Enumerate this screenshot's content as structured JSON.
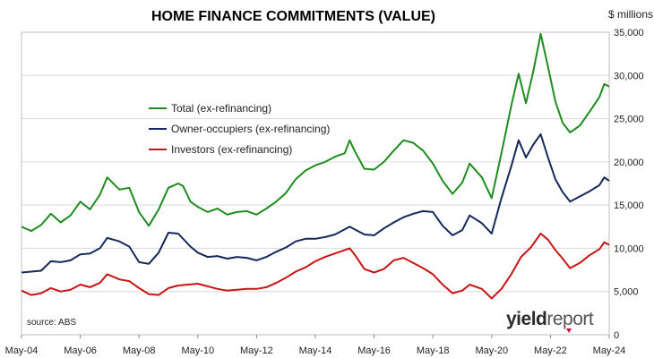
{
  "chart_data": {
    "type": "line",
    "title": "HOME FINANCE COMMITMENTS (VALUE)",
    "unit_label": "$ millions",
    "source": "source: ABS",
    "logo": {
      "part1": "yield",
      "part2": "report"
    },
    "xlabel": "",
    "ylabel": "",
    "x_ticks": [
      "May-04",
      "May-06",
      "May-08",
      "May-10",
      "May-12",
      "May-14",
      "May-16",
      "May-18",
      "May-20",
      "May-22",
      "May-24"
    ],
    "y_ticks": [
      "0",
      "5,000",
      "10,000",
      "15,000",
      "20,000",
      "25,000",
      "30,000",
      "35,000"
    ],
    "ylim": [
      0,
      35000
    ],
    "xlim": [
      "May-04",
      "May-24"
    ],
    "grid": "horizontal",
    "legend_position": "upper-left inside plot",
    "series": [
      {
        "name": "Total (ex-refinancing)",
        "color": "#1e8c1e",
        "points": [
          [
            "May-04",
            12500
          ],
          [
            "Sep-04",
            12000
          ],
          [
            "Jan-05",
            12700
          ],
          [
            "May-05",
            14000
          ],
          [
            "Sep-05",
            13000
          ],
          [
            "Jan-06",
            13800
          ],
          [
            "May-06",
            15400
          ],
          [
            "Sep-06",
            14500
          ],
          [
            "Jan-07",
            16200
          ],
          [
            "Apr-07",
            18200
          ],
          [
            "Sep-07",
            16800
          ],
          [
            "Jan-08",
            17000
          ],
          [
            "May-08",
            14200
          ],
          [
            "Sep-08",
            12600
          ],
          [
            "Jan-09",
            14500
          ],
          [
            "May-09",
            17000
          ],
          [
            "Sep-09",
            17500
          ],
          [
            "Nov-09",
            17200
          ],
          [
            "Feb-10",
            15400
          ],
          [
            "May-10",
            14800
          ],
          [
            "Sep-10",
            14200
          ],
          [
            "Jan-11",
            14600
          ],
          [
            "May-11",
            13900
          ],
          [
            "Sep-11",
            14200
          ],
          [
            "Jan-12",
            14300
          ],
          [
            "May-12",
            13900
          ],
          [
            "Sep-12",
            14600
          ],
          [
            "Jan-13",
            15400
          ],
          [
            "May-13",
            16400
          ],
          [
            "Sep-13",
            18000
          ],
          [
            "Jan-14",
            19000
          ],
          [
            "May-14",
            19600
          ],
          [
            "Sep-14",
            20000
          ],
          [
            "Jan-15",
            20600
          ],
          [
            "May-15",
            21000
          ],
          [
            "Jul-15",
            22500
          ],
          [
            "Sep-15",
            21300
          ],
          [
            "Jan-16",
            19200
          ],
          [
            "May-16",
            19100
          ],
          [
            "Sep-16",
            20000
          ],
          [
            "Jan-17",
            21300
          ],
          [
            "May-17",
            22500
          ],
          [
            "Sep-17",
            22200
          ],
          [
            "Jan-18",
            21300
          ],
          [
            "May-18",
            19800
          ],
          [
            "Sep-18",
            17800
          ],
          [
            "Jan-19",
            16300
          ],
          [
            "May-19",
            17600
          ],
          [
            "Aug-19",
            19800
          ],
          [
            "Jan-20",
            18200
          ],
          [
            "May-20",
            15800
          ],
          [
            "Sep-20",
            21000
          ],
          [
            "Jan-21",
            26500
          ],
          [
            "Apr-21",
            30200
          ],
          [
            "Jul-21",
            26800
          ],
          [
            "Oct-21",
            30500
          ],
          [
            "Jan-22",
            34800
          ],
          [
            "Apr-22",
            31000
          ],
          [
            "Jul-22",
            27000
          ],
          [
            "Oct-22",
            24500
          ],
          [
            "Jan-23",
            23400
          ],
          [
            "May-23",
            24200
          ],
          [
            "Sep-23",
            25800
          ],
          [
            "Jan-24",
            27500
          ],
          [
            "Mar-24",
            29000
          ],
          [
            "May-24",
            28700
          ]
        ]
      },
      {
        "name": "Owner-occupiers (ex-refinancing)",
        "color": "#14285a",
        "points": [
          [
            "May-04",
            7200
          ],
          [
            "Jan-05",
            7400
          ],
          [
            "May-05",
            8500
          ],
          [
            "Sep-05",
            8400
          ],
          [
            "Jan-06",
            8600
          ],
          [
            "May-06",
            9300
          ],
          [
            "Sep-06",
            9400
          ],
          [
            "Jan-07",
            10000
          ],
          [
            "Apr-07",
            11200
          ],
          [
            "Sep-07",
            10800
          ],
          [
            "Jan-08",
            10200
          ],
          [
            "May-08",
            8400
          ],
          [
            "Sep-08",
            8200
          ],
          [
            "Jan-09",
            9500
          ],
          [
            "May-09",
            11800
          ],
          [
            "Sep-09",
            11700
          ],
          [
            "Feb-10",
            10200
          ],
          [
            "May-10",
            9500
          ],
          [
            "Sep-10",
            9000
          ],
          [
            "Jan-11",
            9100
          ],
          [
            "May-11",
            8800
          ],
          [
            "Sep-11",
            9000
          ],
          [
            "Jan-12",
            8900
          ],
          [
            "May-12",
            8600
          ],
          [
            "Sep-12",
            9000
          ],
          [
            "Jan-13",
            9600
          ],
          [
            "May-13",
            10100
          ],
          [
            "Sep-13",
            10800
          ],
          [
            "Jan-14",
            11100
          ],
          [
            "May-14",
            11100
          ],
          [
            "Sep-14",
            11300
          ],
          [
            "Jan-15",
            11600
          ],
          [
            "Jul-15",
            12500
          ],
          [
            "Jan-16",
            11600
          ],
          [
            "May-16",
            11500
          ],
          [
            "Sep-16",
            12300
          ],
          [
            "Jan-17",
            13000
          ],
          [
            "May-17",
            13600
          ],
          [
            "Sep-17",
            14000
          ],
          [
            "Jan-18",
            14300
          ],
          [
            "May-18",
            14200
          ],
          [
            "Sep-18",
            12600
          ],
          [
            "Jan-19",
            11500
          ],
          [
            "May-19",
            12100
          ],
          [
            "Aug-19",
            13800
          ],
          [
            "Jan-20",
            12900
          ],
          [
            "May-20",
            11700
          ],
          [
            "Sep-20",
            15800
          ],
          [
            "Jan-21",
            19500
          ],
          [
            "Apr-21",
            22500
          ],
          [
            "Jul-21",
            20500
          ],
          [
            "Oct-21",
            22000
          ],
          [
            "Jan-22",
            23200
          ],
          [
            "Apr-22",
            20500
          ],
          [
            "Jul-22",
            18000
          ],
          [
            "Oct-22",
            16500
          ],
          [
            "Jan-23",
            15400
          ],
          [
            "May-23",
            16000
          ],
          [
            "Sep-23",
            16600
          ],
          [
            "Jan-24",
            17300
          ],
          [
            "Mar-24",
            18200
          ],
          [
            "May-24",
            17800
          ]
        ]
      },
      {
        "name": "Investors (ex-refinancing)",
        "color": "#c81414",
        "points": [
          [
            "May-04",
            5100
          ],
          [
            "Sep-04",
            4600
          ],
          [
            "Jan-05",
            4800
          ],
          [
            "May-05",
            5400
          ],
          [
            "Sep-05",
            5000
          ],
          [
            "Jan-06",
            5200
          ],
          [
            "May-06",
            5800
          ],
          [
            "Sep-06",
            5500
          ],
          [
            "Jan-07",
            6000
          ],
          [
            "Apr-07",
            7000
          ],
          [
            "Sep-07",
            6400
          ],
          [
            "Jan-08",
            6200
          ],
          [
            "May-08",
            5400
          ],
          [
            "Sep-08",
            4700
          ],
          [
            "Jan-09",
            4600
          ],
          [
            "May-09",
            5400
          ],
          [
            "Sep-09",
            5700
          ],
          [
            "Jan-10",
            5800
          ],
          [
            "May-10",
            5900
          ],
          [
            "Sep-10",
            5600
          ],
          [
            "Jan-11",
            5300
          ],
          [
            "May-11",
            5100
          ],
          [
            "Sep-11",
            5200
          ],
          [
            "Jan-12",
            5300
          ],
          [
            "May-12",
            5300
          ],
          [
            "Sep-12",
            5500
          ],
          [
            "Jan-13",
            6000
          ],
          [
            "May-13",
            6600
          ],
          [
            "Sep-13",
            7300
          ],
          [
            "Jan-14",
            7800
          ],
          [
            "May-14",
            8500
          ],
          [
            "Sep-14",
            9000
          ],
          [
            "Jan-15",
            9400
          ],
          [
            "May-15",
            9800
          ],
          [
            "Jul-15",
            10000
          ],
          [
            "Sep-15",
            9300
          ],
          [
            "Jan-16",
            7600
          ],
          [
            "May-16",
            7200
          ],
          [
            "Sep-16",
            7600
          ],
          [
            "Jan-17",
            8600
          ],
          [
            "May-17",
            8900
          ],
          [
            "Sep-17",
            8300
          ],
          [
            "Jan-18",
            7700
          ],
          [
            "May-18",
            7000
          ],
          [
            "Sep-18",
            5800
          ],
          [
            "Jan-19",
            4800
          ],
          [
            "May-19",
            5100
          ],
          [
            "Aug-19",
            5800
          ],
          [
            "Jan-20",
            5300
          ],
          [
            "May-20",
            4200
          ],
          [
            "Sep-20",
            5300
          ],
          [
            "Jan-21",
            7000
          ],
          [
            "May-21",
            9000
          ],
          [
            "Sep-21",
            10100
          ],
          [
            "Jan-22",
            11700
          ],
          [
            "Apr-22",
            11000
          ],
          [
            "Jul-22",
            9800
          ],
          [
            "Oct-22",
            8800
          ],
          [
            "Jan-23",
            7700
          ],
          [
            "May-23",
            8300
          ],
          [
            "Sep-23",
            9200
          ],
          [
            "Jan-24",
            9900
          ],
          [
            "Mar-24",
            10700
          ],
          [
            "May-24",
            10400
          ]
        ]
      }
    ]
  }
}
